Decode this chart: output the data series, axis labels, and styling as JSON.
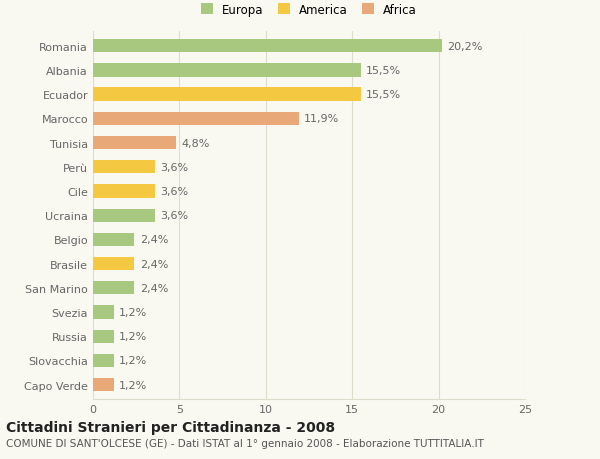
{
  "categories": [
    "Romania",
    "Albania",
    "Ecuador",
    "Marocco",
    "Tunisia",
    "Perù",
    "Cile",
    "Ucraina",
    "Belgio",
    "Brasile",
    "San Marino",
    "Svezia",
    "Russia",
    "Slovacchia",
    "Capo Verde"
  ],
  "values": [
    20.2,
    15.5,
    15.5,
    11.9,
    4.8,
    3.6,
    3.6,
    3.6,
    2.4,
    2.4,
    2.4,
    1.2,
    1.2,
    1.2,
    1.2
  ],
  "labels": [
    "20,2%",
    "15,5%",
    "15,5%",
    "11,9%",
    "4,8%",
    "3,6%",
    "3,6%",
    "3,6%",
    "2,4%",
    "2,4%",
    "2,4%",
    "1,2%",
    "1,2%",
    "1,2%",
    "1,2%"
  ],
  "colors": [
    "#a8c880",
    "#a8c880",
    "#f5c842",
    "#e8a878",
    "#e8a878",
    "#f5c842",
    "#f5c842",
    "#a8c880",
    "#a8c880",
    "#f5c842",
    "#a8c880",
    "#a8c880",
    "#a8c880",
    "#a8c880",
    "#e8a878"
  ],
  "legend_labels": [
    "Europa",
    "America",
    "Africa"
  ],
  "legend_colors": [
    "#a8c880",
    "#f5c842",
    "#e8a878"
  ],
  "title": "Cittadini Stranieri per Cittadinanza - 2008",
  "subtitle": "COMUNE DI SANT'OLCESE (GE) - Dati ISTAT al 1° gennaio 2008 - Elaborazione TUTTITALIA.IT",
  "xlim": [
    0,
    25
  ],
  "xticks": [
    0,
    5,
    10,
    15,
    20,
    25
  ],
  "background_color": "#f9f9f2",
  "grid_color": "#ddddcc",
  "bar_height": 0.55,
  "label_fontsize": 8,
  "tick_fontsize": 8,
  "title_fontsize": 10,
  "subtitle_fontsize": 7.5
}
